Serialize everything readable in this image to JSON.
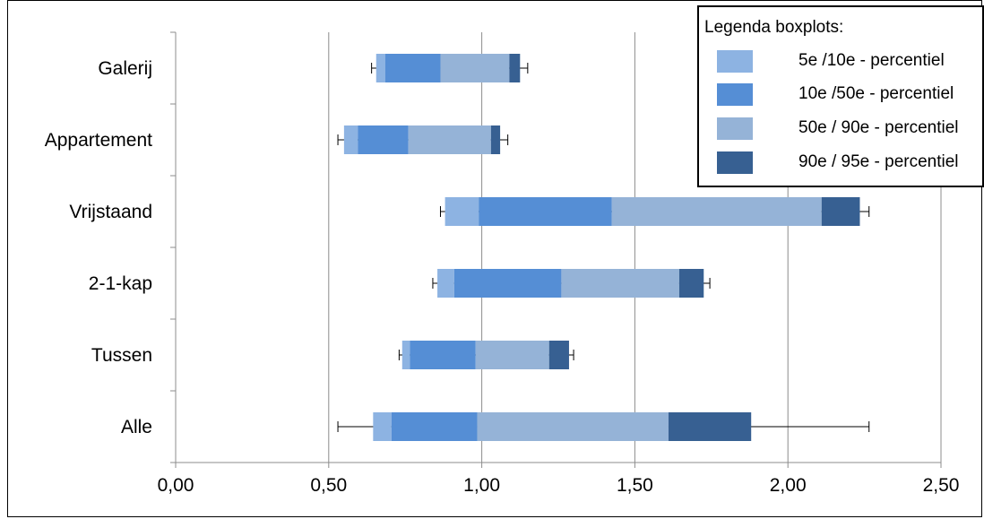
{
  "chart_data": {
    "type": "boxplot",
    "orientation": "horizontal",
    "categories": [
      "Galerij",
      "Appartement",
      "Vrijstaand",
      "2-1-kap",
      "Tussen",
      "Alle"
    ],
    "xlim": [
      0,
      2.5
    ],
    "xticks": [
      "0,00",
      "0,50",
      "1,00",
      "1,50",
      "2,00",
      "2,50"
    ],
    "xtick_values": [
      0,
      0.5,
      1.0,
      1.5,
      2.0,
      2.5
    ],
    "grid": "vertical",
    "legend_position": "top-right",
    "legend_title": "Legenda boxplots:",
    "series": [
      {
        "name": "5e /10e - percentiel",
        "color": "#8db3e2"
      },
      {
        "name": "10e /50e - percentiel",
        "color": "#558ed5"
      },
      {
        "name": "50e / 90e - percentiel",
        "color": "#95b3d7"
      },
      {
        "name": "90e / 95e - percentiel",
        "color": "#376092"
      }
    ],
    "data": [
      {
        "category": "Galerij",
        "min": 0.64,
        "p5": 0.655,
        "p10": 0.685,
        "p50": 0.865,
        "p90": 1.09,
        "p95": 1.125,
        "max": 1.15
      },
      {
        "category": "Appartement",
        "min": 0.53,
        "p5": 0.55,
        "p10": 0.595,
        "p50": 0.76,
        "p90": 1.03,
        "p95": 1.06,
        "max": 1.085
      },
      {
        "category": "Vrijstaand",
        "min": 0.865,
        "p5": 0.88,
        "p10": 0.99,
        "p50": 1.425,
        "p90": 2.11,
        "p95": 2.235,
        "max": 2.265
      },
      {
        "category": "2-1-kap",
        "min": 0.84,
        "p5": 0.855,
        "p10": 0.91,
        "p50": 1.26,
        "p90": 1.645,
        "p95": 1.725,
        "max": 1.745
      },
      {
        "category": "Tussen",
        "min": 0.73,
        "p5": 0.74,
        "p10": 0.765,
        "p50": 0.98,
        "p90": 1.22,
        "p95": 1.285,
        "max": 1.3
      },
      {
        "category": "Alle",
        "min": 0.53,
        "p5": 0.645,
        "p10": 0.705,
        "p50": 0.985,
        "p90": 1.61,
        "p95": 1.88,
        "max": 2.265
      }
    ]
  }
}
